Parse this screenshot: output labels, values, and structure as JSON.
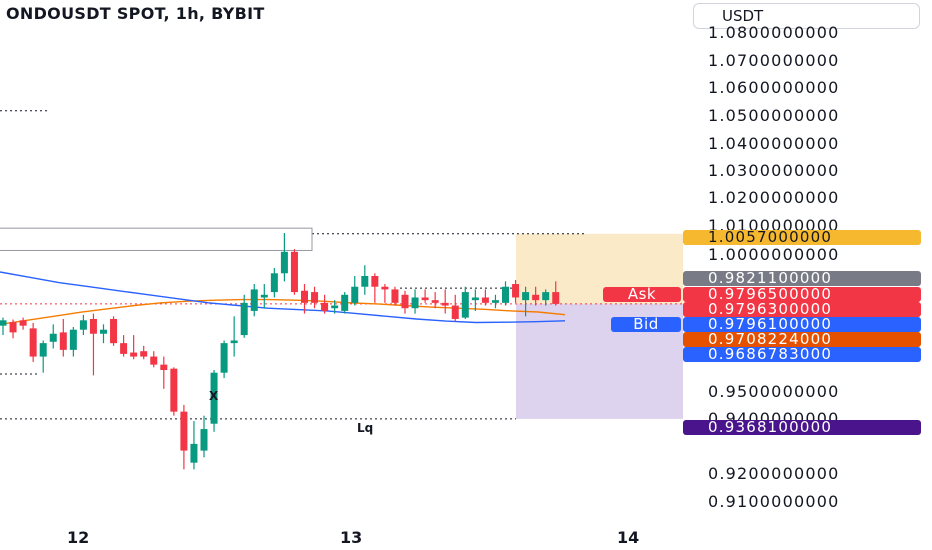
{
  "header": {
    "title": "ONDOUSDT SPOT, 1h, BYBIT",
    "currency": "USDT"
  },
  "price_axis": {
    "labels": [
      "1.0800000000",
      "1.0700000000",
      "1.0600000000",
      "1.0500000000",
      "1.0400000000",
      "1.0300000000",
      "1.0200000000",
      "1.0100000000",
      "1.0000000000",
      "0.9500000000",
      "0.9400000000",
      "0.9200000000",
      "0.9100000000"
    ]
  },
  "time_axis": {
    "labels": [
      "12",
      "13",
      "14"
    ]
  },
  "price_tags": [
    {
      "label": "1.0057000000",
      "color": "#f5b82e",
      "text_color": "#131722"
    },
    {
      "label": "0.9821100000",
      "color": "#787b86",
      "text_color": "#ffffff"
    },
    {
      "label": "0.9796500000",
      "color": "#f23645",
      "text_color": "#ffffff"
    },
    {
      "label": "0.9796300000",
      "color": "#f23645",
      "text_color": "#ffffff"
    },
    {
      "label": "0.9796100000",
      "color": "#2962ff",
      "text_color": "#ffffff"
    },
    {
      "label": "0.9708224000",
      "color": "#e65100",
      "text_color": "#ffffff"
    },
    {
      "label": "0.9686783000",
      "color": "#2962ff",
      "text_color": "#ffffff"
    },
    {
      "label": "0.9368100000",
      "color": "#4a148c",
      "text_color": "#ffffff"
    }
  ],
  "side_tags": {
    "ask": "Ask",
    "bid": "Bid"
  },
  "annotations": {
    "x_marker": "X",
    "lq_marker": "Lq"
  },
  "chart_data": {
    "type": "candlestick",
    "symbol": "ONDOUSDT",
    "interval": "1h",
    "exchange": "BYBIT",
    "ylim": [
      0.904,
      1.0812
    ],
    "x_ticks": [
      "12",
      "13",
      "14"
    ],
    "candles": [
      {
        "o": 0.9715,
        "h": 0.9745,
        "l": 0.968,
        "c": 0.9735
      },
      {
        "o": 0.9728,
        "h": 0.9738,
        "l": 0.9668,
        "c": 0.969
      },
      {
        "o": 0.9735,
        "h": 0.9745,
        "l": 0.97,
        "c": 0.9715
      },
      {
        "o": 0.9705,
        "h": 0.9725,
        "l": 0.958,
        "c": 0.96
      },
      {
        "o": 0.96,
        "h": 0.966,
        "l": 0.954,
        "c": 0.965
      },
      {
        "o": 0.9655,
        "h": 0.972,
        "l": 0.963,
        "c": 0.9685
      },
      {
        "o": 0.969,
        "h": 0.974,
        "l": 0.96,
        "c": 0.9625
      },
      {
        "o": 0.9625,
        "h": 0.971,
        "l": 0.96,
        "c": 0.97
      },
      {
        "o": 0.97,
        "h": 0.9755,
        "l": 0.968,
        "c": 0.9735
      },
      {
        "o": 0.974,
        "h": 0.976,
        "l": 0.953,
        "c": 0.9685
      },
      {
        "o": 0.9685,
        "h": 0.972,
        "l": 0.965,
        "c": 0.97
      },
      {
        "o": 0.974,
        "h": 0.975,
        "l": 0.964,
        "c": 0.965
      },
      {
        "o": 0.965,
        "h": 0.968,
        "l": 0.96,
        "c": 0.961
      },
      {
        "o": 0.9615,
        "h": 0.968,
        "l": 0.959,
        "c": 0.96
      },
      {
        "o": 0.962,
        "h": 0.964,
        "l": 0.959,
        "c": 0.96
      },
      {
        "o": 0.96,
        "h": 0.962,
        "l": 0.956,
        "c": 0.957
      },
      {
        "o": 0.957,
        "h": 0.96,
        "l": 0.948,
        "c": 0.955
      },
      {
        "o": 0.9555,
        "h": 0.956,
        "l": 0.938,
        "c": 0.9395
      },
      {
        "o": 0.9395,
        "h": 0.942,
        "l": 0.918,
        "c": 0.925
      },
      {
        "o": 0.9205,
        "h": 0.936,
        "l": 0.918,
        "c": 0.9275
      },
      {
        "o": 0.925,
        "h": 0.938,
        "l": 0.9225,
        "c": 0.933
      },
      {
        "o": 0.935,
        "h": 0.955,
        "l": 0.932,
        "c": 0.954
      },
      {
        "o": 0.954,
        "h": 0.966,
        "l": 0.952,
        "c": 0.965
      },
      {
        "o": 0.965,
        "h": 0.975,
        "l": 0.96,
        "c": 0.966
      },
      {
        "o": 0.968,
        "h": 0.983,
        "l": 0.967,
        "c": 0.98
      },
      {
        "o": 0.977,
        "h": 0.987,
        "l": 0.975,
        "c": 0.985
      },
      {
        "o": 0.982,
        "h": 0.987,
        "l": 0.978,
        "c": 0.983
      },
      {
        "o": 0.984,
        "h": 0.993,
        "l": 0.982,
        "c": 0.991
      },
      {
        "o": 0.991,
        "h": 1.006,
        "l": 0.988,
        "c": 0.999
      },
      {
        "o": 0.999,
        "h": 1.0,
        "l": 0.983,
        "c": 0.984
      },
      {
        "o": 0.9845,
        "h": 0.987,
        "l": 0.976,
        "c": 0.98
      },
      {
        "o": 0.984,
        "h": 0.986,
        "l": 0.978,
        "c": 0.98
      },
      {
        "o": 0.98,
        "h": 0.983,
        "l": 0.976,
        "c": 0.977
      },
      {
        "o": 0.978,
        "h": 0.981,
        "l": 0.976,
        "c": 0.979
      },
      {
        "o": 0.977,
        "h": 0.984,
        "l": 0.976,
        "c": 0.983
      },
      {
        "o": 0.98,
        "h": 0.99,
        "l": 0.979,
        "c": 0.986
      },
      {
        "o": 0.986,
        "h": 0.994,
        "l": 0.983,
        "c": 0.99
      },
      {
        "o": 0.99,
        "h": 0.991,
        "l": 0.98,
        "c": 0.986
      },
      {
        "o": 0.986,
        "h": 0.987,
        "l": 0.98,
        "c": 0.985
      },
      {
        "o": 0.985,
        "h": 0.986,
        "l": 0.979,
        "c": 0.98
      },
      {
        "o": 0.983,
        "h": 0.9845,
        "l": 0.976,
        "c": 0.978
      },
      {
        "o": 0.978,
        "h": 0.985,
        "l": 0.976,
        "c": 0.982
      },
      {
        "o": 0.982,
        "h": 0.985,
        "l": 0.98,
        "c": 0.981
      },
      {
        "o": 0.981,
        "h": 0.984,
        "l": 0.978,
        "c": 0.98
      },
      {
        "o": 0.98,
        "h": 0.985,
        "l": 0.976,
        "c": 0.979
      },
      {
        "o": 0.979,
        "h": 0.983,
        "l": 0.973,
        "c": 0.974
      },
      {
        "o": 0.9745,
        "h": 0.986,
        "l": 0.974,
        "c": 0.984
      },
      {
        "o": 0.981,
        "h": 0.985,
        "l": 0.977,
        "c": 0.982
      },
      {
        "o": 0.982,
        "h": 0.985,
        "l": 0.979,
        "c": 0.98
      },
      {
        "o": 0.98,
        "h": 0.983,
        "l": 0.978,
        "c": 0.981
      },
      {
        "o": 0.98,
        "h": 0.988,
        "l": 0.979,
        "c": 0.986
      },
      {
        "o": 0.987,
        "h": 0.9885,
        "l": 0.98,
        "c": 0.982
      },
      {
        "o": 0.981,
        "h": 0.986,
        "l": 0.975,
        "c": 0.984
      },
      {
        "o": 0.983,
        "h": 0.986,
        "l": 0.979,
        "c": 0.981
      },
      {
        "o": 0.981,
        "h": 0.985,
        "l": 0.979,
        "c": 0.984
      },
      {
        "o": 0.984,
        "h": 0.988,
        "l": 0.979,
        "c": 0.9796
      }
    ],
    "moving_averages": [
      {
        "color": "#f57c00",
        "values": [
          0.972,
          0.9735,
          0.975,
          0.9765,
          0.9778,
          0.979,
          0.98,
          0.9806,
          0.981,
          0.9812,
          0.9812,
          0.981,
          0.9806,
          0.98,
          0.9796,
          0.979,
          0.9784,
          0.978,
          0.9776,
          0.977,
          0.9766,
          0.9756
        ]
      },
      {
        "color": "#2962ff",
        "values": [
          0.9915,
          0.9895,
          0.9875,
          0.986,
          0.9845,
          0.983,
          0.9815,
          0.98,
          0.979,
          0.978,
          0.9775,
          0.977,
          0.976,
          0.975,
          0.974,
          0.9732,
          0.9727,
          0.9728,
          0.973,
          0.9733
        ]
      }
    ],
    "zones": [
      {
        "name": "target",
        "top": 1.0057,
        "bottom": 0.9796,
        "color": "#f9e3b4"
      },
      {
        "name": "stop",
        "top": 0.9796,
        "bottom": 0.93681,
        "color": "#d1c4e9"
      }
    ]
  }
}
